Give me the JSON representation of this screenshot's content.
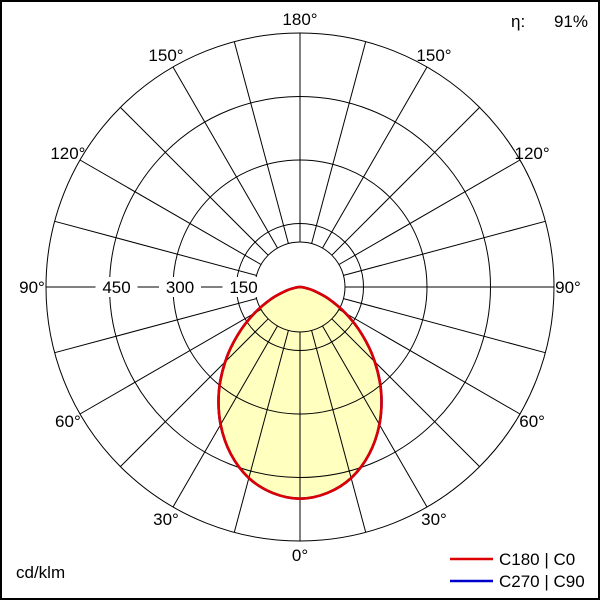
{
  "header": {
    "efficiency_label": "η:",
    "efficiency_value": "91%"
  },
  "footer": {
    "unit_label": "cd/klm"
  },
  "chart_data": {
    "type": "polar",
    "subtype": "luminous-intensity-distribution",
    "unit": "cd/klm",
    "efficiency_percent": 91,
    "grid_color": "#000000",
    "r_axis": {
      "ticks": [
        150,
        300,
        450
      ],
      "max": 600,
      "tick_label_side": "left"
    },
    "angle_axis": {
      "labels_deg": [
        0,
        30,
        60,
        90,
        120,
        150,
        180
      ],
      "grid_step_deg": 15,
      "zero_at": "bottom",
      "mirrored": true
    },
    "series": [
      {
        "name": "C180 | C0",
        "color": "#dd0000",
        "fill": "#ffffc0",
        "gamma_deg": [
          -90,
          -82.5,
          -75,
          -67.5,
          -60,
          -52.5,
          -45,
          -37.5,
          -30,
          -22.5,
          -15,
          -7.5,
          0,
          7.5,
          15,
          22.5,
          30,
          37.5,
          45,
          52.5,
          60,
          67.5,
          75,
          82.5,
          90
        ],
        "cd_per_klm": [
          0,
          9,
          33,
          73,
          125,
          185,
          250,
          315,
          375,
          427,
          467,
          491,
          500,
          491,
          467,
          427,
          375,
          315,
          250,
          185,
          125,
          73,
          33,
          9,
          0
        ]
      },
      {
        "name": "C270 | C90",
        "color": "#0000cc",
        "fill": "none",
        "gamma_deg": [
          -90,
          -82.5,
          -75,
          -67.5,
          -60,
          -52.5,
          -45,
          -37.5,
          -30,
          -22.5,
          -15,
          -7.5,
          0,
          7.5,
          15,
          22.5,
          30,
          37.5,
          45,
          52.5,
          60,
          67.5,
          75,
          82.5,
          90
        ],
        "cd_per_klm": [
          0,
          9,
          33,
          73,
          125,
          185,
          250,
          315,
          375,
          427,
          467,
          491,
          500,
          491,
          467,
          427,
          375,
          315,
          250,
          185,
          125,
          73,
          33,
          9,
          0
        ]
      }
    ]
  }
}
